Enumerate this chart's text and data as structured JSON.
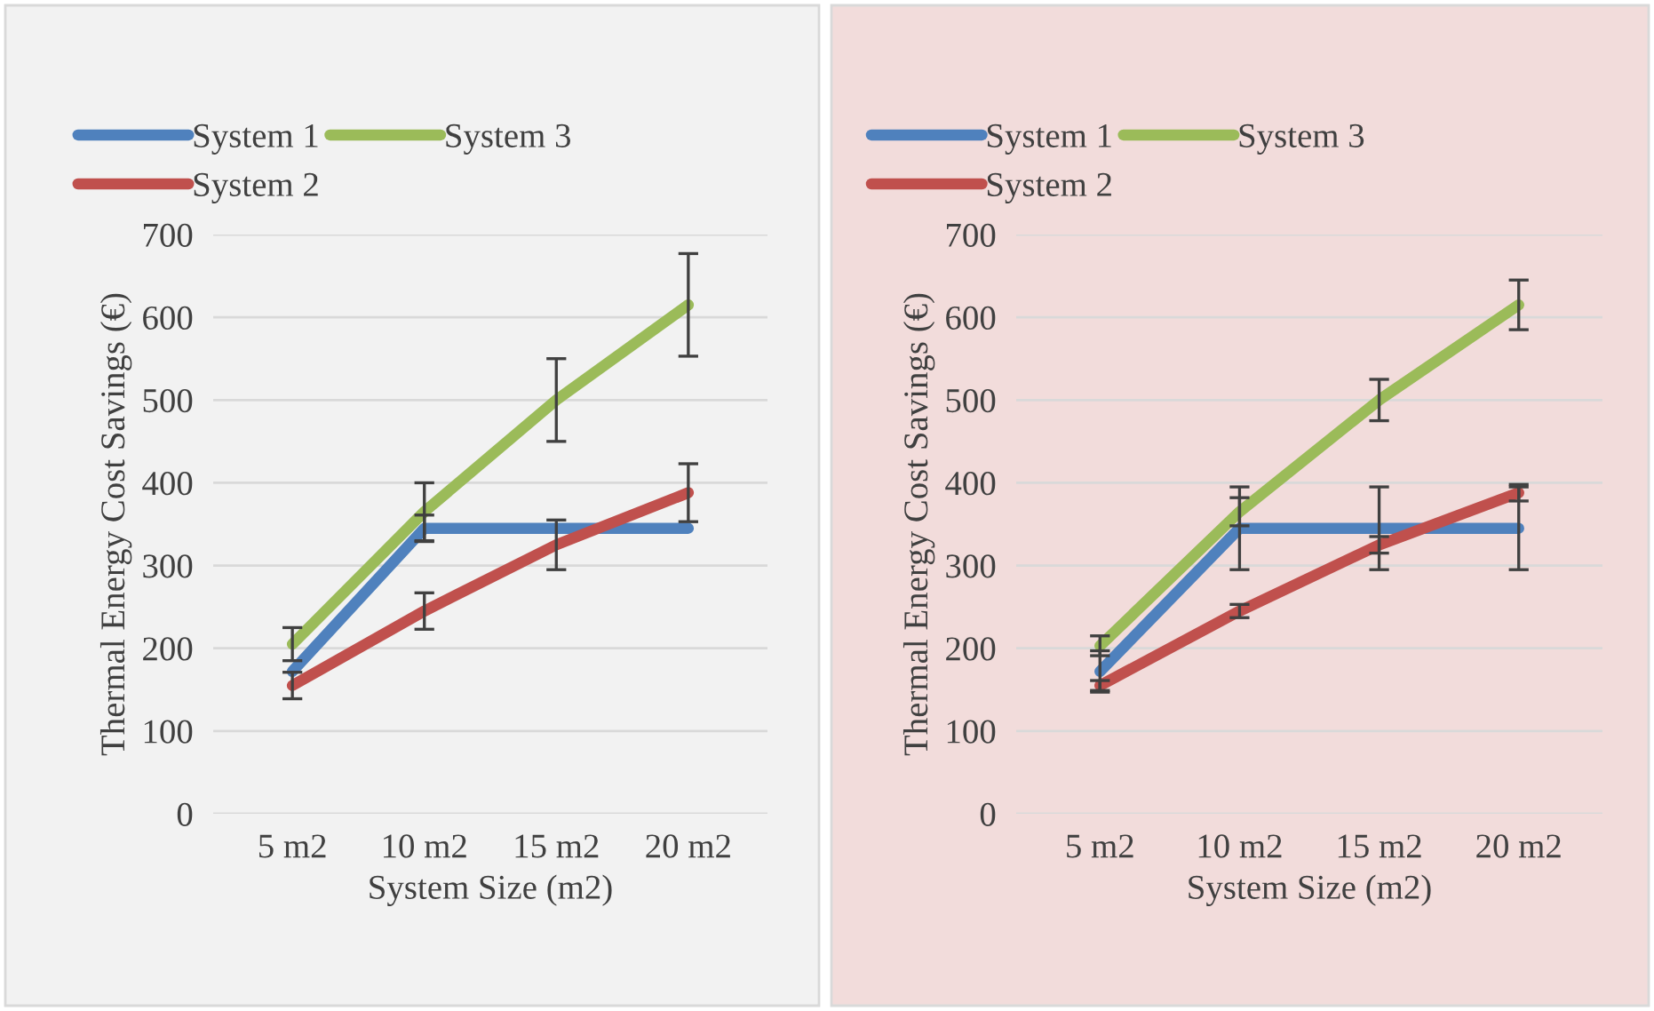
{
  "chart_data": [
    {
      "type": "line",
      "xlabel": "System Size (m2)",
      "ylabel": "Thermal Energy Cost Savings (€)",
      "categories": [
        "5 m2",
        "10 m2",
        "15 m2",
        "20 m2"
      ],
      "ylim": [
        0,
        700
      ],
      "yticks": [
        0,
        100,
        200,
        300,
        400,
        500,
        600,
        700
      ],
      "grid": "y",
      "legend": "top",
      "series": [
        {
          "name": "System 1",
          "color": "#4f81bd",
          "values": [
            172,
            345,
            345,
            345
          ],
          "errors": [
            null,
            16,
            null,
            null
          ]
        },
        {
          "name": "System 2",
          "color": "#c0504d",
          "values": [
            155,
            245,
            325,
            388
          ],
          "errors": [
            16,
            22,
            30,
            35
          ]
        },
        {
          "name": "System 3",
          "color": "#9bbb59",
          "values": [
            205,
            365,
            500,
            615
          ],
          "errors": [
            20,
            35,
            50,
            62
          ]
        }
      ]
    },
    {
      "type": "line",
      "xlabel": "System Size (m2)",
      "ylabel": "Thermal Energy Cost Savings (€)",
      "categories": [
        "5 m2",
        "10 m2",
        "15 m2",
        "20 m2"
      ],
      "ylim": [
        0,
        700
      ],
      "yticks": [
        0,
        100,
        200,
        300,
        400,
        500,
        600,
        700
      ],
      "grid": "y",
      "legend": "top",
      "series": [
        {
          "name": "System 1",
          "color": "#4f81bd",
          "values": [
            172,
            345,
            345,
            345
          ],
          "errors": [
            25,
            50,
            50,
            50
          ]
        },
        {
          "name": "System 2",
          "color": "#c0504d",
          "values": [
            155,
            245,
            325,
            388
          ],
          "errors": [
            6,
            8,
            10,
            10
          ]
        },
        {
          "name": "System 3",
          "color": "#9bbb59",
          "values": [
            203,
            365,
            500,
            615
          ],
          "errors": [
            12,
            17,
            25,
            30
          ]
        }
      ]
    }
  ]
}
